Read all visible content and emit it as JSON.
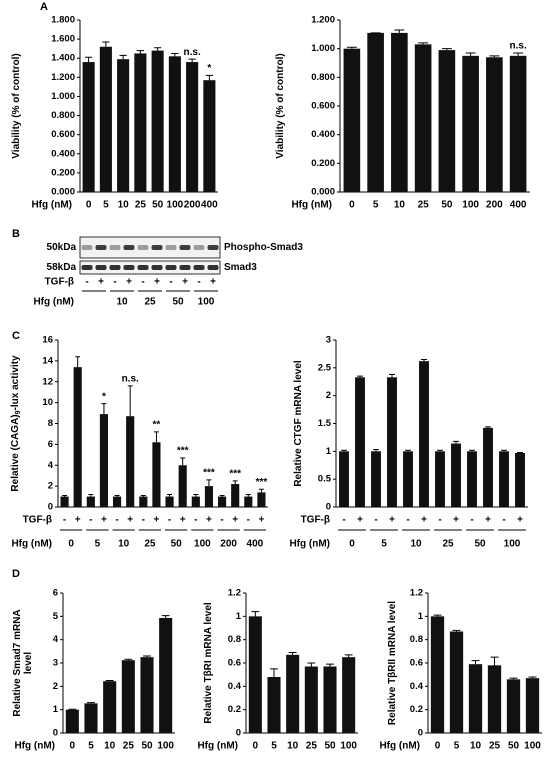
{
  "panels": [
    "A",
    "B",
    "C",
    "D"
  ],
  "blot": {
    "bands": [
      "50kDa",
      "58kDa"
    ],
    "proteins": [
      "Phospho-Smad3",
      "Smad3"
    ],
    "row_label": "TGF-β",
    "signs": [
      "-",
      "+",
      "-",
      "+",
      "-",
      "+",
      "-",
      "+",
      "-",
      "+"
    ],
    "group_label": "Hfg (nM)",
    "doses": [
      "10",
      "25",
      "50",
      "100"
    ]
  },
  "chart_data": [
    {
      "type": "bar",
      "ylabel": [
        "Viability (% of control)"
      ],
      "xlabel": "Hfg (nM)",
      "categories": [
        "0",
        "5",
        "10",
        "25",
        "50",
        "100",
        "200",
        "400"
      ],
      "values": [
        1.36,
        1.52,
        1.39,
        1.45,
        1.48,
        1.42,
        1.36,
        1.17
      ],
      "errors": [
        0.05,
        0.05,
        0.04,
        0.03,
        0.03,
        0.03,
        0.03,
        0.05
      ],
      "significance": [
        null,
        null,
        null,
        null,
        null,
        null,
        "n.s.",
        "*"
      ],
      "color": "#111111",
      "ylim": [
        0,
        1.8
      ],
      "yticks": [
        {
          "value": 0,
          "label": "0.000"
        },
        {
          "value": 0.2,
          "label": "0.200"
        },
        {
          "value": 0.4,
          "label": "0.400"
        },
        {
          "value": 0.6,
          "label": "0.600"
        },
        {
          "value": 0.8,
          "label": "0.800"
        },
        {
          "value": 1,
          "label": "1.000"
        },
        {
          "value": 1.2,
          "label": "1.200"
        },
        {
          "value": 1.4,
          "label": "1.400"
        },
        {
          "value": 1.6,
          "label": "1.600"
        },
        {
          "value": 1.8,
          "label": "1.800"
        }
      ]
    },
    {
      "type": "bar",
      "ylabel": [
        "Viability (% of control)"
      ],
      "xlabel": "Hfg (nM)",
      "categories": [
        "0",
        "5",
        "10",
        "25",
        "50",
        "100",
        "200",
        "400"
      ],
      "values": [
        1.0,
        1.11,
        1.11,
        1.03,
        0.99,
        0.95,
        0.94,
        0.95
      ],
      "errors": [
        0.01,
        0,
        0.02,
        0.01,
        0.01,
        0.02,
        0.01,
        0.02
      ],
      "significance": [
        null,
        null,
        null,
        null,
        null,
        null,
        null,
        "n.s."
      ],
      "color": "#111111",
      "ylim": [
        0,
        1.2
      ],
      "yticks": [
        {
          "value": 0,
          "label": "0.000"
        },
        {
          "value": 0.2,
          "label": "0.200"
        },
        {
          "value": 0.4,
          "label": "0.400"
        },
        {
          "value": 0.6,
          "label": "0.600"
        },
        {
          "value": 0.8,
          "label": "0.800"
        },
        {
          "value": 1,
          "label": "1.000"
        },
        {
          "value": 1.2,
          "label": "1.200"
        }
      ]
    },
    {
      "type": "bar",
      "ylabel": [
        "Relative (CAGA)"
      ],
      "ylabel_subscript": "9",
      "ylabel_suffix": "-lux activity",
      "row_label": "TGF-β",
      "group_label": "Hfg (nM)",
      "groups": [
        "0",
        "5",
        "10",
        "25",
        "50",
        "100",
        "200",
        "400"
      ],
      "categories": [
        "-",
        "+",
        "-",
        "+",
        "-",
        "+",
        "-",
        "+",
        "-",
        "+",
        "-",
        "+",
        "-",
        "+",
        "-",
        "+"
      ],
      "values": [
        1,
        13.4,
        1,
        8.9,
        1,
        8.7,
        1,
        6.2,
        1,
        4.0,
        1,
        2.0,
        1,
        2.2,
        1,
        1.4
      ],
      "errors": [
        0.1,
        1.0,
        0.2,
        1.0,
        0.1,
        2.9,
        0.1,
        1.0,
        0.2,
        0.7,
        0.2,
        0.6,
        0.1,
        0.3,
        0.2,
        0.3
      ],
      "significance": [
        null,
        null,
        null,
        "*",
        null,
        "n.s.",
        null,
        "**",
        null,
        "***",
        null,
        "***",
        null,
        "***",
        null,
        "***"
      ],
      "color": "#111111",
      "ylim": [
        0,
        16
      ],
      "yticks": [
        0,
        2,
        4,
        6,
        8,
        10,
        12,
        14,
        16
      ]
    },
    {
      "type": "bar",
      "ylabel": [
        "Relative CTGF mRNA level"
      ],
      "row_label": "TGF-β",
      "group_label": "Hfg (nM)",
      "groups": [
        "0",
        "5",
        "10",
        "25",
        "50",
        "100"
      ],
      "categories": [
        "-",
        "+",
        "-",
        "+",
        "-",
        "+",
        "-",
        "+",
        "-",
        "+",
        "-",
        "+"
      ],
      "values": [
        1,
        2.33,
        1,
        2.33,
        1,
        2.62,
        1,
        1.14,
        1,
        1.42,
        1,
        0.97
      ],
      "errors": [
        0.02,
        0.02,
        0.03,
        0.05,
        0.02,
        0.03,
        0.02,
        0.04,
        0.02,
        0.02,
        0.02,
        0.01
      ],
      "color": "#111111",
      "ylim": [
        0,
        3
      ],
      "yticks": [
        0,
        0.5,
        1,
        1.5,
        2,
        2.5,
        3
      ]
    },
    {
      "type": "bar",
      "ylabel": [
        "Relative Smad7 mRNA",
        "level"
      ],
      "xlabel": "Hfg (nM)",
      "categories": [
        "0",
        "5",
        "10",
        "25",
        "50",
        "100"
      ],
      "values": [
        1.0,
        1.27,
        2.22,
        3.12,
        3.25,
        4.93
      ],
      "errors": [
        0.02,
        0.03,
        0.03,
        0.04,
        0.05,
        0.1
      ],
      "color": "#111111",
      "ylim": [
        0,
        6
      ],
      "yticks": [
        0,
        1,
        2,
        3,
        4,
        5,
        6
      ]
    },
    {
      "type": "bar",
      "ylabel": [
        "Relative TβRI mRNA level"
      ],
      "xlabel": "Hfg (nM)",
      "categories": [
        "0",
        "5",
        "10",
        "25",
        "50",
        "100"
      ],
      "values": [
        1.0,
        0.48,
        0.67,
        0.57,
        0.57,
        0.65
      ],
      "errors": [
        0.04,
        0.07,
        0.02,
        0.03,
        0.02,
        0.02
      ],
      "color": "#111111",
      "ylim": [
        0,
        1.2
      ],
      "yticks": [
        0,
        0.2,
        0.4,
        0.6,
        0.8,
        1,
        1.2
      ]
    },
    {
      "type": "bar",
      "ylabel": [
        "Relative TβRII mRNA level"
      ],
      "xlabel": "Hfg (nM)",
      "categories": [
        "0",
        "5",
        "10",
        "25",
        "50",
        "100"
      ],
      "values": [
        1.0,
        0.87,
        0.59,
        0.58,
        0.46,
        0.47
      ],
      "errors": [
        0.01,
        0.01,
        0.03,
        0.07,
        0.01,
        0.01
      ],
      "color": "#111111",
      "ylim": [
        0,
        1.2
      ],
      "yticks": [
        0,
        0.2,
        0.4,
        0.6,
        0.8,
        1,
        1.2
      ]
    }
  ]
}
